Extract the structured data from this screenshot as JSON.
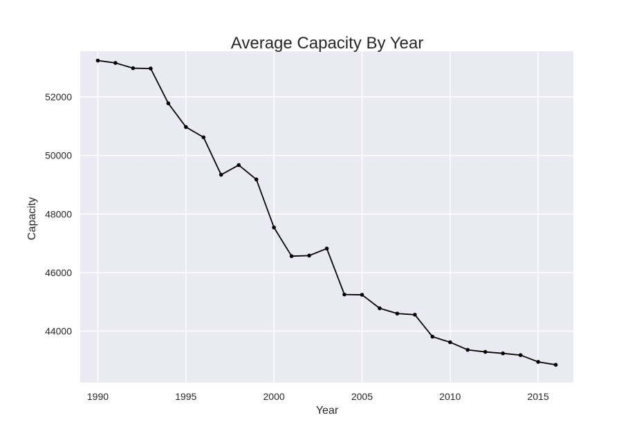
{
  "chart_data": {
    "type": "line",
    "title": "Average Capacity By Year",
    "xlabel": "Year",
    "ylabel": "Capacity",
    "xlim": [
      1989,
      2017
    ],
    "ylim": [
      42240,
      53560
    ],
    "x_ticks": [
      1990,
      1995,
      2000,
      2005,
      2010,
      2015
    ],
    "x_tick_labels": [
      "1990",
      "1995",
      "2000",
      "2005",
      "2010",
      "2015"
    ],
    "y_ticks": [
      44000,
      46000,
      48000,
      50000,
      52000
    ],
    "y_tick_labels": [
      "44000",
      "46000",
      "48000",
      "50000",
      "52000"
    ],
    "grid": true,
    "series": [
      {
        "color": "#000000",
        "marker": "dot",
        "x": [
          1990,
          1991,
          1992,
          1993,
          1994,
          1995,
          1996,
          1997,
          1998,
          1999,
          2000,
          2001,
          2002,
          2003,
          2004,
          2005,
          2006,
          2007,
          2008,
          2009,
          2010,
          2011,
          2012,
          2013,
          2014,
          2015,
          2016
        ],
        "y": [
          53240,
          53160,
          52980,
          52970,
          51780,
          50970,
          50620,
          49340,
          49670,
          49180,
          47540,
          46560,
          46580,
          46820,
          45250,
          45240,
          44780,
          44600,
          44560,
          43810,
          43620,
          43360,
          43290,
          43240,
          43180,
          42950,
          42850
        ]
      }
    ]
  },
  "colors": {
    "plot_background": "#eaeaf2",
    "grid": "#ffffff",
    "text": "#262626",
    "line": "#000000"
  }
}
